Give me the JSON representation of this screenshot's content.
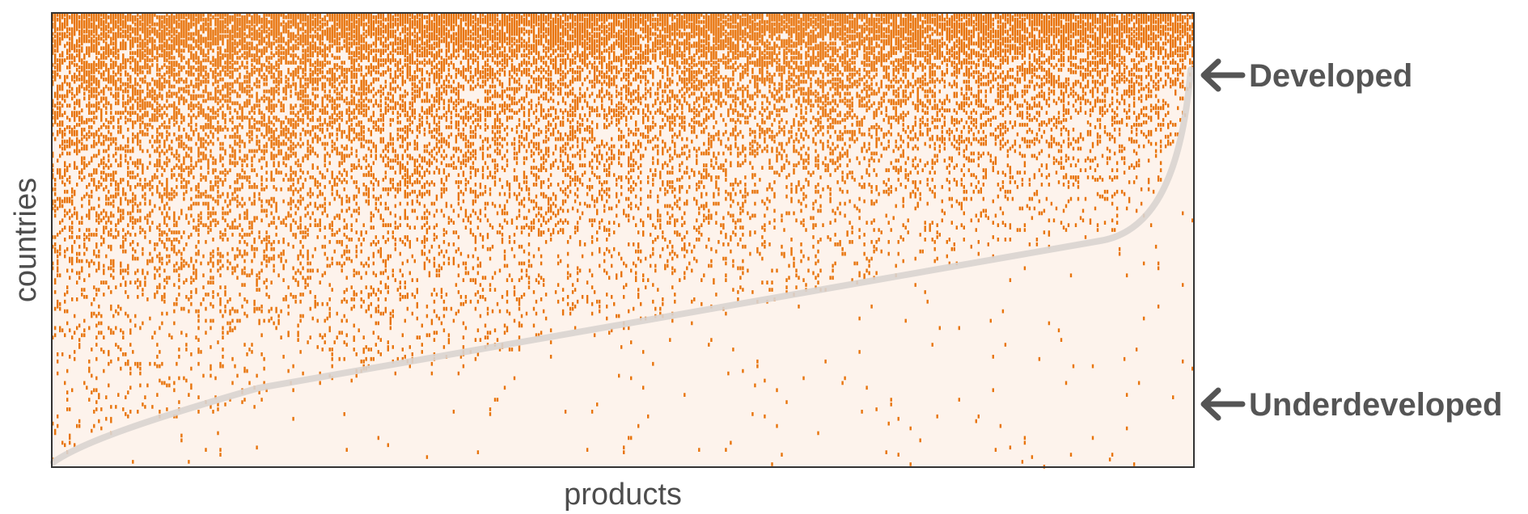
{
  "chart_data": {
    "type": "heatmap",
    "title": "",
    "xlabel": "products",
    "ylabel": "countries",
    "grid": false,
    "legend": "none",
    "annotations": [
      {
        "text": "Developed",
        "marker": "left-arrow"
      },
      {
        "text": "Underdeveloped",
        "marker": "left-arrow"
      }
    ],
    "colors": {
      "background": "#fdf3ec",
      "cell": "#e8740c",
      "frontier": "#d9d4d0",
      "frame": "#333333",
      "annotation": "#555555"
    }
  }
}
